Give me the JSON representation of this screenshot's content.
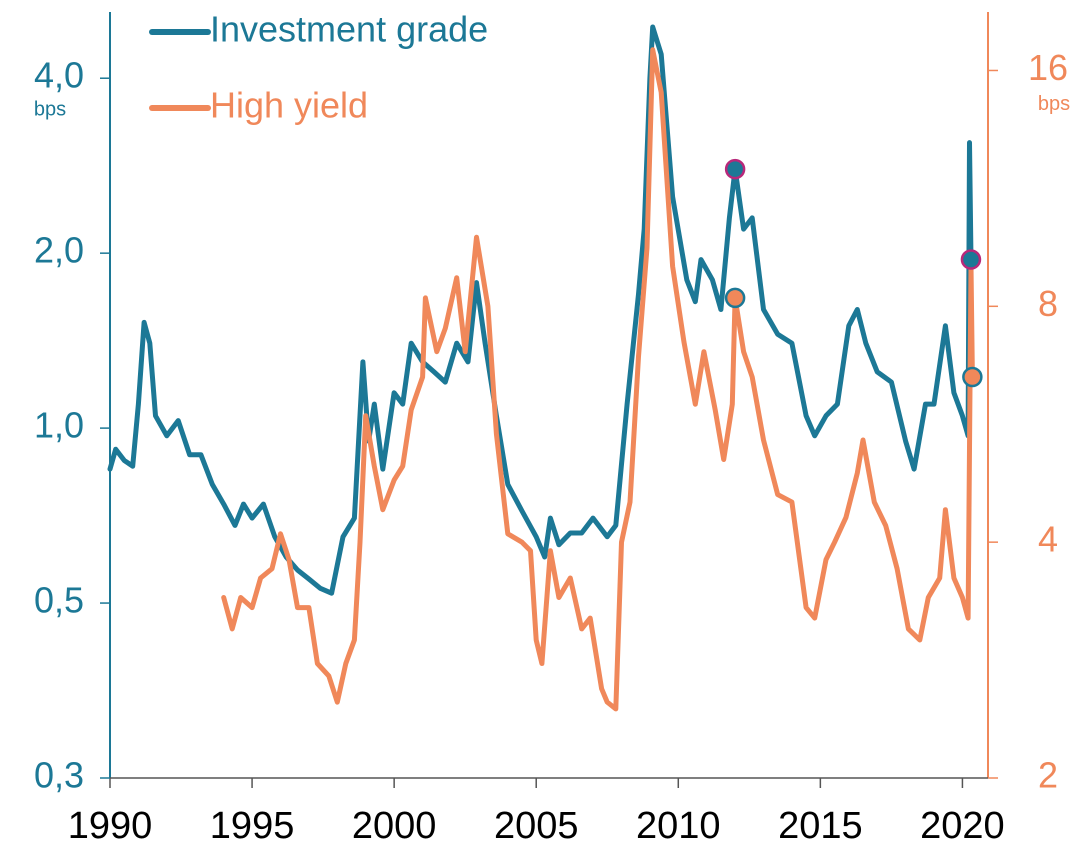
{
  "chart_data": {
    "type": "line",
    "log_scale": true,
    "legend": "top-left",
    "xlim": [
      1990,
      2020.9
    ],
    "xticks": [
      1990,
      1995,
      2000,
      2005,
      2010,
      2015,
      2020
    ],
    "ylim": [
      0.25,
      5.2
    ],
    "yticks": [
      {
        "value": 0.25,
        "label": "0,3"
      },
      {
        "value": 0.5,
        "label": "0,5"
      },
      {
        "value": 1,
        "label": "1,0"
      },
      {
        "value": 2,
        "label": "2,0"
      },
      {
        "value": 4,
        "label": "4,0"
      }
    ],
    "y_unit": "bps",
    "y2lim": [
      2,
      19
    ],
    "y2ticks": [
      2,
      4,
      8,
      16
    ],
    "y2_unit": "bps",
    "y_color": "#1c7896",
    "y2_color": "#f0885a",
    "series": [
      {
        "name": "Investment grade",
        "color": "#1c7896",
        "axis": "y",
        "x": [
          1990,
          1990.2,
          1990.5,
          1990.8,
          1991.0,
          1991.2,
          1991.4,
          1991.6,
          1992,
          1992.4,
          1992.8,
          1993.2,
          1993.6,
          1994,
          1994.4,
          1994.7,
          1995,
          1995.4,
          1995.8,
          1996.2,
          1996.6,
          1997,
          1997.4,
          1997.8,
          1998.2,
          1998.6,
          1998.9,
          1999.1,
          1999.3,
          1999.6,
          2000,
          2000.3,
          2000.6,
          2001,
          2001.4,
          2001.8,
          2002.2,
          2002.6,
          2002.9,
          2003.2,
          2003.6,
          2004,
          2004.5,
          2005,
          2005.3,
          2005.5,
          2005.8,
          2006.2,
          2006.6,
          2007,
          2007.5,
          2007.8,
          2008.2,
          2008.6,
          2008.8,
          2009.0,
          2009.1,
          2009.4,
          2009.8,
          2010.3,
          2010.6,
          2010.8,
          2011.2,
          2011.5,
          2011.8,
          2012.0,
          2012.3,
          2012.6,
          2013,
          2013.5,
          2014,
          2014.5,
          2014.8,
          2015.2,
          2015.6,
          2016,
          2016.3,
          2016.6,
          2017,
          2017.5,
          2018,
          2018.3,
          2018.7,
          2019,
          2019.4,
          2019.7,
          2020.0,
          2020.2,
          2020.25,
          2020.3
        ],
        "values": [
          0.85,
          0.92,
          0.88,
          0.86,
          1.1,
          1.52,
          1.4,
          1.05,
          0.97,
          1.03,
          0.9,
          0.9,
          0.8,
          0.74,
          0.68,
          0.74,
          0.7,
          0.74,
          0.65,
          0.6,
          0.57,
          0.55,
          0.53,
          0.52,
          0.65,
          0.7,
          1.3,
          0.95,
          1.1,
          0.85,
          1.15,
          1.1,
          1.4,
          1.3,
          1.25,
          1.2,
          1.4,
          1.3,
          1.78,
          1.4,
          1.05,
          0.8,
          0.72,
          0.65,
          0.6,
          0.7,
          0.63,
          0.66,
          0.66,
          0.7,
          0.65,
          0.68,
          1.1,
          1.7,
          2.2,
          4.0,
          4.9,
          4.4,
          2.5,
          1.8,
          1.65,
          1.95,
          1.8,
          1.6,
          2.3,
          2.79,
          2.2,
          2.3,
          1.6,
          1.45,
          1.4,
          1.05,
          0.97,
          1.05,
          1.1,
          1.5,
          1.6,
          1.4,
          1.25,
          1.2,
          0.95,
          0.85,
          1.1,
          1.1,
          1.5,
          1.15,
          1.05,
          0.97,
          3.1,
          1.95
        ]
      },
      {
        "name": "High yield",
        "color": "#f0885a",
        "axis": "y2",
        "x": [
          1994,
          1994.3,
          1994.6,
          1995,
          1995.3,
          1995.7,
          1996,
          1996.3,
          1996.6,
          1997,
          1997.3,
          1997.7,
          1998,
          1998.3,
          1998.6,
          1998.8,
          1999.0,
          1999.3,
          1999.6,
          2000,
          2000.3,
          2000.6,
          2001,
          2001.1,
          2001.5,
          2001.8,
          2002.2,
          2002.5,
          2002.9,
          2003.3,
          2003.6,
          2004,
          2004.5,
          2004.8,
          2005.0,
          2005.2,
          2005.5,
          2005.8,
          2006.2,
          2006.6,
          2006.9,
          2007.3,
          2007.5,
          2007.8,
          2008.0,
          2008.3,
          2008.6,
          2008.9,
          2009.1,
          2009.4,
          2009.8,
          2010.2,
          2010.6,
          2010.9,
          2011.3,
          2011.6,
          2011.9,
          2012.0,
          2012.3,
          2012.6,
          2013,
          2013.5,
          2014,
          2014.5,
          2014.8,
          2015.2,
          2015.5,
          2015.9,
          2016.3,
          2016.5,
          2016.9,
          2017.3,
          2017.7,
          2018.1,
          2018.5,
          2018.8,
          2019.2,
          2019.4,
          2019.7,
          2020.0,
          2020.2,
          2020.3,
          2020.35
        ],
        "values": [
          3.4,
          3.1,
          3.4,
          3.3,
          3.6,
          3.7,
          4.1,
          3.8,
          3.3,
          3.3,
          2.8,
          2.7,
          2.5,
          2.8,
          3.0,
          4.0,
          5.8,
          5.0,
          4.4,
          4.8,
          5.0,
          5.9,
          6.5,
          8.2,
          7.0,
          7.5,
          8.7,
          7.0,
          9.8,
          8.0,
          5.5,
          4.1,
          4.0,
          3.9,
          3.0,
          2.8,
          3.9,
          3.4,
          3.6,
          3.1,
          3.2,
          2.6,
          2.5,
          2.45,
          4.0,
          4.5,
          6.9,
          9.5,
          17.0,
          15.0,
          9.0,
          7.2,
          6.0,
          7.0,
          5.9,
          5.1,
          6.0,
          8.2,
          7.0,
          6.5,
          5.4,
          4.6,
          4.5,
          3.3,
          3.2,
          3.8,
          4.0,
          4.3,
          4.9,
          5.4,
          4.5,
          4.2,
          3.7,
          3.1,
          3.0,
          3.4,
          3.6,
          4.4,
          3.6,
          3.4,
          3.2,
          9.0,
          6.5
        ]
      }
    ],
    "markers": [
      {
        "x": 2012.0,
        "value": 2.79,
        "axis": "y",
        "fill": "#1c7896",
        "stroke": "#b8287a"
      },
      {
        "x": 2020.3,
        "value": 1.95,
        "axis": "y",
        "fill": "#1c7896",
        "stroke": "#b8287a"
      },
      {
        "x": 2012.0,
        "value": 8.2,
        "axis": "y2",
        "fill": "#f0885a",
        "stroke": "#1c7896"
      },
      {
        "x": 2020.35,
        "value": 6.5,
        "axis": "y2",
        "fill": "#f0885a",
        "stroke": "#1c7896"
      }
    ]
  }
}
